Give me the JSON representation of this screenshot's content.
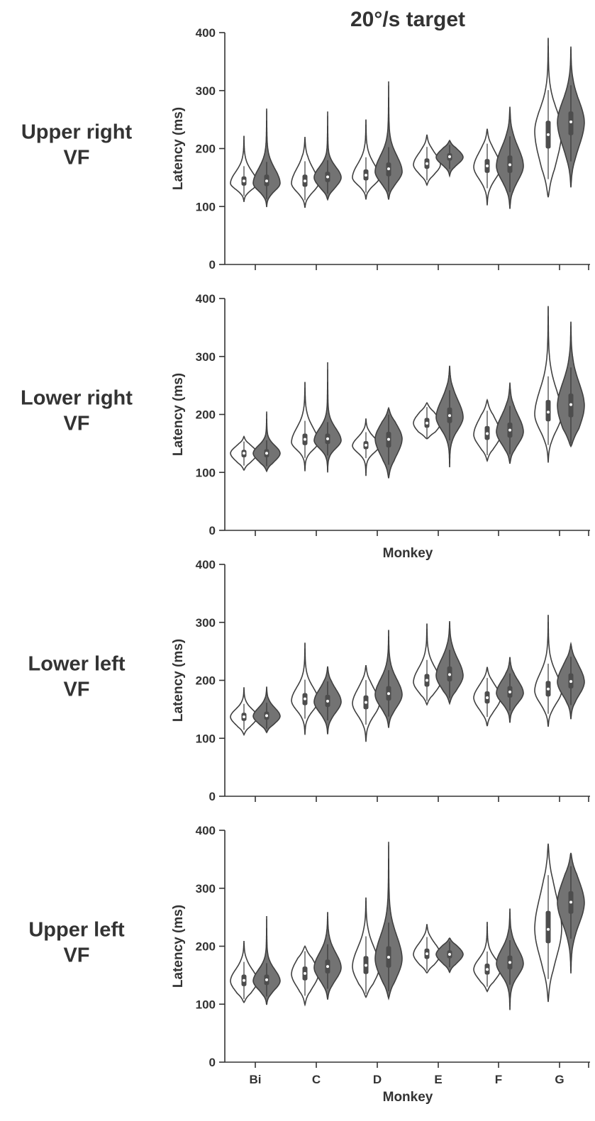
{
  "figure": {
    "title": "20°/s target",
    "xlabel": "Monkey",
    "ylabel": "Latency (ms)"
  },
  "chart_data": [
    {
      "type": "violin",
      "title": "20°/s target",
      "row_label": [
        "Upper right",
        "VF"
      ],
      "ylabel": "Latency (ms)",
      "xlabel": "",
      "ylim": [
        0,
        400
      ],
      "yticks": [
        0,
        100,
        200,
        300,
        400
      ],
      "categories": [
        "Bi",
        "C",
        "D",
        "E",
        "F",
        "G"
      ],
      "show_tick_labels": false,
      "series": [
        {
          "fill": "#ffffff",
          "values": [
            {
              "median": 144,
              "q1": 136,
              "q3": 152,
              "min": 108,
              "max": 222,
              "peak": 140
            },
            {
              "median": 144,
              "q1": 134,
              "q3": 155,
              "min": 98,
              "max": 220,
              "peak": 140
            },
            {
              "median": 154,
              "q1": 145,
              "q3": 164,
              "min": 112,
              "max": 250,
              "peak": 150
            },
            {
              "median": 174,
              "q1": 165,
              "q3": 183,
              "min": 137,
              "max": 224,
              "peak": 172
            },
            {
              "median": 170,
              "q1": 158,
              "q3": 182,
              "min": 102,
              "max": 234,
              "peak": 168
            },
            {
              "median": 224,
              "q1": 200,
              "q3": 248,
              "min": 116,
              "max": 391,
              "peak": 230
            }
          ]
        },
        {
          "fill": "#737373",
          "values": [
            {
              "median": 144,
              "q1": 135,
              "q3": 155,
              "min": 99,
              "max": 269,
              "peak": 140
            },
            {
              "median": 151,
              "q1": 142,
              "q3": 160,
              "min": 112,
              "max": 264,
              "peak": 150
            },
            {
              "median": 165,
              "q1": 152,
              "q3": 176,
              "min": 112,
              "max": 316,
              "peak": 160
            },
            {
              "median": 186,
              "q1": 179,
              "q3": 192,
              "min": 153,
              "max": 214,
              "peak": 185
            },
            {
              "median": 172,
              "q1": 158,
              "q3": 188,
              "min": 96,
              "max": 272,
              "peak": 170
            },
            {
              "median": 246,
              "q1": 223,
              "q3": 264,
              "min": 133,
              "max": 376,
              "peak": 245
            }
          ]
        }
      ]
    },
    {
      "type": "violin",
      "row_label": [
        "Lower right",
        "VF"
      ],
      "ylabel": "Latency (ms)",
      "xlabel": "Monkey",
      "ylim": [
        0,
        400
      ],
      "yticks": [
        0,
        100,
        200,
        300,
        400
      ],
      "categories": [
        "Bi",
        "C",
        "D",
        "E",
        "F",
        "G"
      ],
      "show_tick_labels": false,
      "series": [
        {
          "fill": "#ffffff",
          "values": [
            {
              "median": 133,
              "q1": 126,
              "q3": 139,
              "min": 104,
              "max": 162,
              "peak": 133
            },
            {
              "median": 157,
              "q1": 147,
              "q3": 167,
              "min": 102,
              "max": 256,
              "peak": 152
            },
            {
              "median": 147,
              "q1": 140,
              "q3": 154,
              "min": 94,
              "max": 193,
              "peak": 146
            },
            {
              "median": 185,
              "q1": 177,
              "q3": 194,
              "min": 158,
              "max": 220,
              "peak": 185
            },
            {
              "median": 167,
              "q1": 156,
              "q3": 180,
              "min": 120,
              "max": 225,
              "peak": 165
            },
            {
              "median": 204,
              "q1": 188,
              "q3": 225,
              "min": 117,
              "max": 387,
              "peak": 200
            }
          ]
        },
        {
          "fill": "#737373",
          "values": [
            {
              "median": 133,
              "q1": 126,
              "q3": 140,
              "min": 102,
              "max": 205,
              "peak": 133
            },
            {
              "median": 158,
              "q1": 149,
              "q3": 167,
              "min": 100,
              "max": 290,
              "peak": 155
            },
            {
              "median": 157,
              "q1": 143,
              "q3": 170,
              "min": 90,
              "max": 211,
              "peak": 158
            },
            {
              "median": 198,
              "q1": 185,
              "q3": 212,
              "min": 109,
              "max": 284,
              "peak": 195
            },
            {
              "median": 173,
              "q1": 160,
              "q3": 186,
              "min": 115,
              "max": 255,
              "peak": 170
            },
            {
              "median": 217,
              "q1": 195,
              "q3": 236,
              "min": 145,
              "max": 360,
              "peak": 215
            }
          ]
        }
      ]
    },
    {
      "type": "violin",
      "row_label": [
        "Lower left",
        "VF"
      ],
      "ylabel": "Latency (ms)",
      "xlabel": "",
      "ylim": [
        0,
        400
      ],
      "yticks": [
        0,
        100,
        200,
        300,
        400
      ],
      "categories": [
        "Bi",
        "C",
        "D",
        "E",
        "F",
        "G"
      ],
      "show_tick_labels": false,
      "series": [
        {
          "fill": "#ffffff",
          "values": [
            {
              "median": 137,
              "q1": 130,
              "q3": 144,
              "min": 106,
              "max": 188,
              "peak": 137
            },
            {
              "median": 168,
              "q1": 157,
              "q3": 178,
              "min": 106,
              "max": 265,
              "peak": 165
            },
            {
              "median": 162,
              "q1": 150,
              "q3": 174,
              "min": 94,
              "max": 226,
              "peak": 160
            },
            {
              "median": 200,
              "q1": 189,
              "q3": 211,
              "min": 158,
              "max": 298,
              "peak": 197
            },
            {
              "median": 170,
              "q1": 160,
              "q3": 181,
              "min": 121,
              "max": 223,
              "peak": 170
            },
            {
              "median": 185,
              "q1": 172,
              "q3": 199,
              "min": 120,
              "max": 313,
              "peak": 182
            }
          ]
        },
        {
          "fill": "#737373",
          "values": [
            {
              "median": 139,
              "q1": 132,
              "q3": 146,
              "min": 110,
              "max": 189,
              "peak": 138
            },
            {
              "median": 164,
              "q1": 154,
              "q3": 175,
              "min": 107,
              "max": 224,
              "peak": 163
            },
            {
              "median": 177,
              "q1": 165,
              "q3": 190,
              "min": 118,
              "max": 287,
              "peak": 175
            },
            {
              "median": 210,
              "q1": 198,
              "q3": 224,
              "min": 160,
              "max": 302,
              "peak": 208
            },
            {
              "median": 180,
              "q1": 170,
              "q3": 190,
              "min": 127,
              "max": 240,
              "peak": 178
            },
            {
              "median": 198,
              "q1": 186,
              "q3": 212,
              "min": 133,
              "max": 263,
              "peak": 197
            }
          ]
        }
      ]
    },
    {
      "type": "violin",
      "row_label": [
        "Upper left",
        "VF"
      ],
      "ylabel": "Latency (ms)",
      "xlabel": "Monkey",
      "ylim": [
        0,
        400
      ],
      "yticks": [
        0,
        100,
        200,
        300,
        400
      ],
      "categories": [
        "Bi",
        "C",
        "D",
        "E",
        "F",
        "G"
      ],
      "show_tick_labels": true,
      "series": [
        {
          "fill": "#ffffff",
          "values": [
            {
              "median": 141,
              "q1": 131,
              "q3": 151,
              "min": 103,
              "max": 209,
              "peak": 140
            },
            {
              "median": 153,
              "q1": 141,
              "q3": 165,
              "min": 99,
              "max": 200,
              "peak": 152
            },
            {
              "median": 167,
              "q1": 152,
              "q3": 183,
              "min": 112,
              "max": 284,
              "peak": 165
            },
            {
              "median": 187,
              "q1": 178,
              "q3": 196,
              "min": 154,
              "max": 238,
              "peak": 186
            },
            {
              "median": 160,
              "q1": 151,
              "q3": 170,
              "min": 122,
              "max": 242,
              "peak": 160
            },
            {
              "median": 229,
              "q1": 205,
              "q3": 261,
              "min": 104,
              "max": 377,
              "peak": 230
            }
          ]
        },
        {
          "fill": "#737373",
          "values": [
            {
              "median": 142,
              "q1": 133,
              "q3": 151,
              "min": 99,
              "max": 252,
              "peak": 140
            },
            {
              "median": 165,
              "q1": 153,
              "q3": 177,
              "min": 108,
              "max": 259,
              "peak": 163
            },
            {
              "median": 181,
              "q1": 163,
              "q3": 200,
              "min": 110,
              "max": 380,
              "peak": 178
            },
            {
              "median": 186,
              "q1": 179,
              "q3": 193,
              "min": 155,
              "max": 214,
              "peak": 186
            },
            {
              "median": 172,
              "q1": 160,
              "q3": 184,
              "min": 90,
              "max": 265,
              "peak": 170
            },
            {
              "median": 276,
              "q1": 256,
              "q3": 295,
              "min": 153,
              "max": 361,
              "peak": 275
            }
          ]
        }
      ]
    }
  ]
}
